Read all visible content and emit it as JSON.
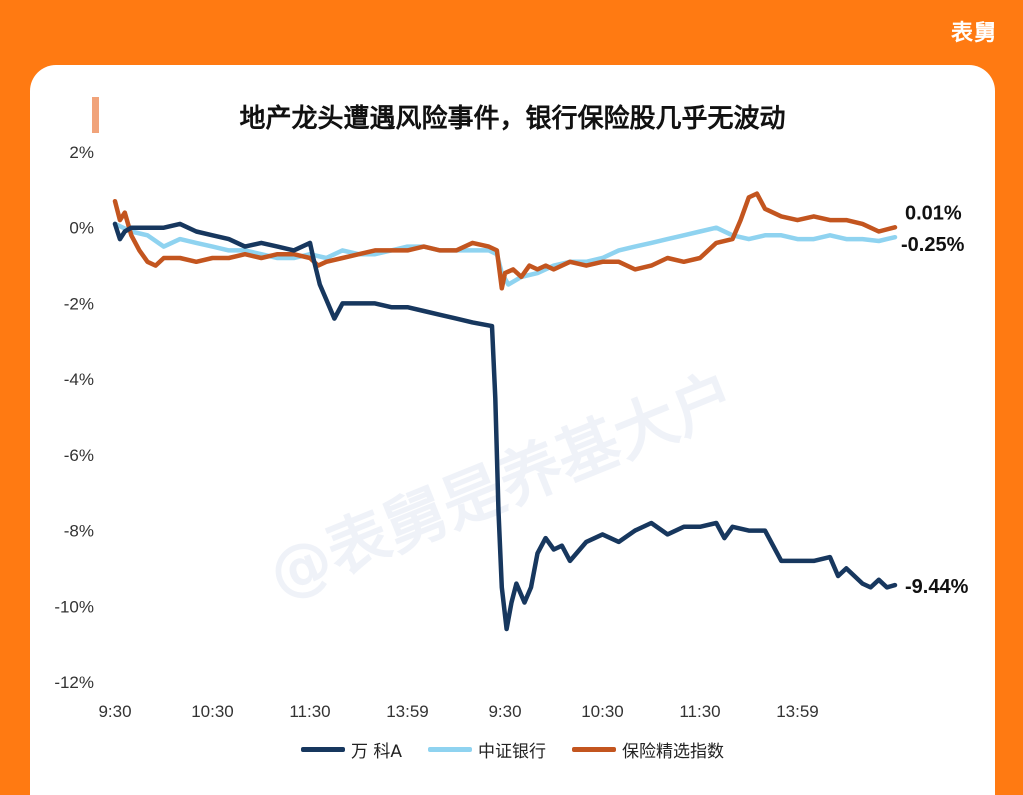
{
  "brand": "表舅",
  "title": "地产龙头遭遇风险事件，银行保险股几乎无波动",
  "watermark": "@表舅是养基大户",
  "colors": {
    "background": "#ff7a12",
    "card": "#ffffff",
    "wanke": "#17375e",
    "bank": "#8fd3f0",
    "insurance": "#c3551f"
  },
  "chart_data": {
    "type": "line",
    "title": "地产龙头遭遇风险事件，银行保险股几乎无波动",
    "xlabel": "",
    "ylabel": "",
    "x_ticks": [
      "9:30",
      "10:30",
      "11:30",
      "13:59",
      "9:30",
      "10:30",
      "11:30",
      "13:59"
    ],
    "y_ticks": [
      "2%",
      "0%",
      "-2%",
      "-4%",
      "-6%",
      "-8%",
      "-10%",
      "-12%"
    ],
    "ylim": [
      -12,
      2
    ],
    "grid": false,
    "legend": "bottom",
    "x_unit": "trading minutes across two sessions (0-480)",
    "series": [
      {
        "name": "万 科A",
        "color": "#17375e",
        "end_label": "-9.44%",
        "points": [
          [
            0,
            0.1
          ],
          [
            3,
            -0.3
          ],
          [
            6,
            -0.1
          ],
          [
            10,
            0
          ],
          [
            20,
            0
          ],
          [
            30,
            0
          ],
          [
            40,
            0.1
          ],
          [
            50,
            -0.1
          ],
          [
            60,
            -0.2
          ],
          [
            70,
            -0.3
          ],
          [
            80,
            -0.5
          ],
          [
            90,
            -0.4
          ],
          [
            100,
            -0.5
          ],
          [
            110,
            -0.6
          ],
          [
            120,
            -0.4
          ],
          [
            122,
            -0.8
          ],
          [
            126,
            -1.5
          ],
          [
            130,
            -1.9
          ],
          [
            135,
            -2.4
          ],
          [
            140,
            -2.0
          ],
          [
            150,
            -2.0
          ],
          [
            160,
            -2.0
          ],
          [
            170,
            -2.1
          ],
          [
            180,
            -2.1
          ],
          [
            190,
            -2.2
          ],
          [
            200,
            -2.3
          ],
          [
            210,
            -2.4
          ],
          [
            220,
            -2.5
          ],
          [
            232,
            -2.6
          ],
          [
            234,
            -4.5
          ],
          [
            236,
            -7.5
          ],
          [
            238,
            -9.5
          ],
          [
            241,
            -10.6
          ],
          [
            244,
            -9.9
          ],
          [
            247,
            -9.4
          ],
          [
            252,
            -9.9
          ],
          [
            256,
            -9.5
          ],
          [
            260,
            -8.6
          ],
          [
            265,
            -8.2
          ],
          [
            270,
            -8.5
          ],
          [
            275,
            -8.4
          ],
          [
            280,
            -8.8
          ],
          [
            290,
            -8.3
          ],
          [
            300,
            -8.1
          ],
          [
            310,
            -8.3
          ],
          [
            320,
            -8.0
          ],
          [
            330,
            -7.8
          ],
          [
            340,
            -8.1
          ],
          [
            350,
            -7.9
          ],
          [
            360,
            -7.9
          ],
          [
            370,
            -7.8
          ],
          [
            375,
            -8.2
          ],
          [
            380,
            -7.9
          ],
          [
            390,
            -8.0
          ],
          [
            400,
            -8.0
          ],
          [
            405,
            -8.4
          ],
          [
            410,
            -8.8
          ],
          [
            420,
            -8.8
          ],
          [
            430,
            -8.8
          ],
          [
            440,
            -8.7
          ],
          [
            445,
            -9.2
          ],
          [
            450,
            -9.0
          ],
          [
            460,
            -9.4
          ],
          [
            465,
            -9.5
          ],
          [
            470,
            -9.3
          ],
          [
            475,
            -9.5
          ],
          [
            480,
            -9.44
          ]
        ]
      },
      {
        "name": "中证银行",
        "color": "#8fd3f0",
        "end_label": "-0.25%",
        "points": [
          [
            0,
            0.1
          ],
          [
            10,
            -0.1
          ],
          [
            20,
            -0.2
          ],
          [
            30,
            -0.5
          ],
          [
            40,
            -0.3
          ],
          [
            50,
            -0.4
          ],
          [
            60,
            -0.5
          ],
          [
            70,
            -0.6
          ],
          [
            80,
            -0.6
          ],
          [
            90,
            -0.7
          ],
          [
            100,
            -0.8
          ],
          [
            110,
            -0.8
          ],
          [
            120,
            -0.7
          ],
          [
            130,
            -0.8
          ],
          [
            140,
            -0.6
          ],
          [
            150,
            -0.7
          ],
          [
            160,
            -0.7
          ],
          [
            170,
            -0.6
          ],
          [
            180,
            -0.5
          ],
          [
            190,
            -0.5
          ],
          [
            200,
            -0.6
          ],
          [
            210,
            -0.6
          ],
          [
            220,
            -0.6
          ],
          [
            230,
            -0.6
          ],
          [
            235,
            -0.7
          ],
          [
            238,
            -1.2
          ],
          [
            242,
            -1.5
          ],
          [
            250,
            -1.3
          ],
          [
            260,
            -1.2
          ],
          [
            270,
            -1.0
          ],
          [
            280,
            -0.9
          ],
          [
            290,
            -0.9
          ],
          [
            300,
            -0.8
          ],
          [
            310,
            -0.6
          ],
          [
            320,
            -0.5
          ],
          [
            330,
            -0.4
          ],
          [
            340,
            -0.3
          ],
          [
            350,
            -0.2
          ],
          [
            360,
            -0.1
          ],
          [
            370,
            0.0
          ],
          [
            380,
            -0.2
          ],
          [
            390,
            -0.3
          ],
          [
            400,
            -0.2
          ],
          [
            410,
            -0.2
          ],
          [
            420,
            -0.3
          ],
          [
            430,
            -0.3
          ],
          [
            440,
            -0.2
          ],
          [
            450,
            -0.3
          ],
          [
            460,
            -0.3
          ],
          [
            470,
            -0.35
          ],
          [
            480,
            -0.25
          ]
        ]
      },
      {
        "name": "保险精选指数",
        "color": "#c3551f",
        "end_label": "0.01%",
        "points": [
          [
            0,
            0.7
          ],
          [
            3,
            0.2
          ],
          [
            6,
            0.4
          ],
          [
            10,
            -0.2
          ],
          [
            15,
            -0.6
          ],
          [
            20,
            -0.9
          ],
          [
            25,
            -1.0
          ],
          [
            30,
            -0.8
          ],
          [
            40,
            -0.8
          ],
          [
            50,
            -0.9
          ],
          [
            60,
            -0.8
          ],
          [
            70,
            -0.8
          ],
          [
            80,
            -0.7
          ],
          [
            90,
            -0.8
          ],
          [
            100,
            -0.7
          ],
          [
            110,
            -0.7
          ],
          [
            120,
            -0.8
          ],
          [
            125,
            -1.0
          ],
          [
            130,
            -0.9
          ],
          [
            140,
            -0.8
          ],
          [
            150,
            -0.7
          ],
          [
            160,
            -0.6
          ],
          [
            170,
            -0.6
          ],
          [
            180,
            -0.6
          ],
          [
            190,
            -0.5
          ],
          [
            200,
            -0.6
          ],
          [
            210,
            -0.6
          ],
          [
            220,
            -0.4
          ],
          [
            230,
            -0.5
          ],
          [
            235,
            -0.6
          ],
          [
            238,
            -1.6
          ],
          [
            240,
            -1.2
          ],
          [
            245,
            -1.1
          ],
          [
            250,
            -1.3
          ],
          [
            255,
            -1.0
          ],
          [
            260,
            -1.1
          ],
          [
            265,
            -1.0
          ],
          [
            270,
            -1.1
          ],
          [
            280,
            -0.9
          ],
          [
            290,
            -1.0
          ],
          [
            300,
            -0.9
          ],
          [
            310,
            -0.9
          ],
          [
            320,
            -1.1
          ],
          [
            330,
            -1.0
          ],
          [
            340,
            -0.8
          ],
          [
            350,
            -0.9
          ],
          [
            360,
            -0.8
          ],
          [
            370,
            -0.4
          ],
          [
            380,
            -0.3
          ],
          [
            385,
            0.2
          ],
          [
            390,
            0.8
          ],
          [
            395,
            0.9
          ],
          [
            400,
            0.5
          ],
          [
            410,
            0.3
          ],
          [
            420,
            0.2
          ],
          [
            430,
            0.3
          ],
          [
            440,
            0.2
          ],
          [
            450,
            0.2
          ],
          [
            460,
            0.1
          ],
          [
            470,
            -0.1
          ],
          [
            480,
            0.01
          ]
        ]
      }
    ]
  }
}
